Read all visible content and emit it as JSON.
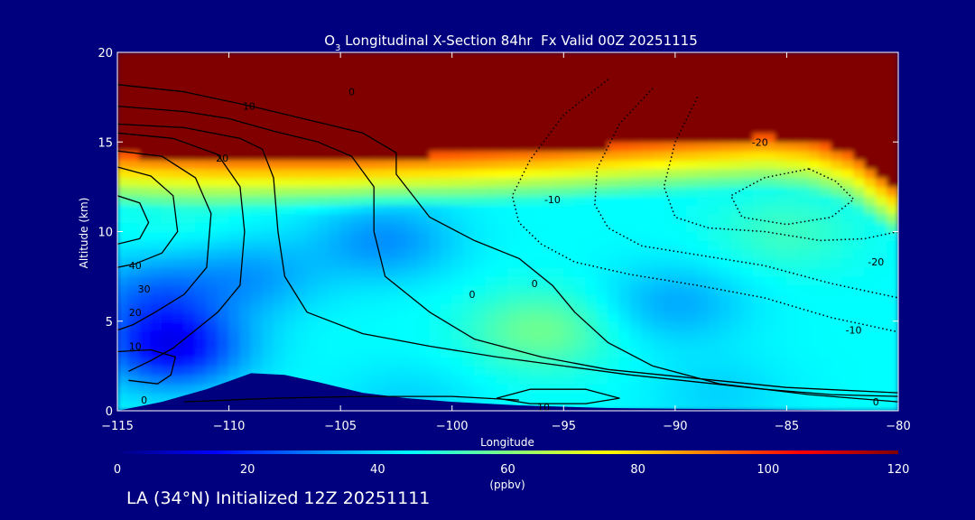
{
  "chart_data": {
    "type": "heatmap",
    "title": "O3 Longitudinal X-Section 84hr  Fx Valid 00Z 20251115",
    "title_parts": {
      "prefix": "O",
      "subscript": "3",
      "suffix": " Longitudinal X-Section 84hr  Fx Valid 00Z 20251115"
    },
    "xlabel": "Longitude",
    "ylabel": "Altitude (km)",
    "xlim": [
      -115,
      -80
    ],
    "ylim": [
      0,
      20
    ],
    "x_ticks": [
      -115,
      -110,
      -105,
      -100,
      -95,
      -90,
      -85,
      -80
    ],
    "x_tick_labels": [
      "-115",
      "-110",
      "-105",
      "-100",
      "-95",
      "-90",
      "-85",
      "-80"
    ],
    "y_ticks": [
      0,
      5,
      10,
      15,
      20
    ],
    "y_tick_labels": [
      "0",
      "5",
      "10",
      "15",
      "20"
    ],
    "colorbar": {
      "min": 0,
      "max": 120,
      "ticks": [
        0,
        20,
        40,
        60,
        80,
        100,
        120
      ],
      "tick_labels": [
        "0",
        "20",
        "40",
        "60",
        "80",
        "100",
        "120"
      ],
      "unit": "(ppbv)",
      "colors": [
        "#00007f",
        "#0000ff",
        "#0080ff",
        "#00ffff",
        "#80ff80",
        "#ffff00",
        "#ff8000",
        "#ff0000",
        "#800000"
      ]
    },
    "ozone_field": {
      "tropopause_km": [
        [
          -115,
          14.3
        ],
        [
          -113,
          14.2
        ],
        [
          -110,
          14.1
        ],
        [
          -105,
          14.1
        ],
        [
          -100,
          14.3
        ],
        [
          -95,
          14.6
        ],
        [
          -90,
          15.0
        ],
        [
          -86,
          15.3
        ],
        [
          -84,
          15.1
        ],
        [
          -82,
          14.3
        ],
        [
          -80,
          12.5
        ]
      ],
      "stratosphere_ppbv": 125,
      "background_ppbv": 45,
      "features": [
        {
          "lon": -112.5,
          "alt": 3.5,
          "ppbv": 15
        },
        {
          "lon": -113.5,
          "alt": 6.5,
          "ppbv": 30
        },
        {
          "lon": -109,
          "alt": 7.5,
          "ppbv": 34
        },
        {
          "lon": -103,
          "alt": 9.5,
          "ppbv": 32
        },
        {
          "lon": -96,
          "alt": 4.5,
          "ppbv": 58
        },
        {
          "lon": -90,
          "alt": 6,
          "ppbv": 35
        },
        {
          "lon": -85,
          "alt": 10,
          "ppbv": 52
        },
        {
          "lon": -112,
          "alt": 11,
          "ppbv": 48
        },
        {
          "lon": -88,
          "alt": 1,
          "ppbv": 40
        },
        {
          "lon": -102,
          "alt": 0.5,
          "ppbv": 40
        }
      ]
    },
    "terrain_km": [
      [
        -115,
        0.0
      ],
      [
        -113,
        0.5
      ],
      [
        -111,
        1.2
      ],
      [
        -109,
        2.1
      ],
      [
        -107.5,
        2.0
      ],
      [
        -106,
        1.6
      ],
      [
        -104,
        1.0
      ],
      [
        -102,
        0.7
      ],
      [
        -100,
        0.5
      ],
      [
        -97,
        0.3
      ],
      [
        -93,
        0.15
      ],
      [
        -80,
        0.0
      ]
    ],
    "contours": [
      {
        "style": "solid",
        "points": [
          [
            -115,
            18.2
          ],
          [
            -112,
            17.8
          ],
          [
            -109,
            17.0
          ],
          [
            -106,
            16.1
          ],
          [
            -104,
            15.5
          ],
          [
            -102.5,
            14.4
          ],
          [
            -102.5,
            13.2
          ],
          [
            -101,
            10.8
          ],
          [
            -99,
            9.5
          ],
          [
            -97,
            8.5
          ],
          [
            -95.5,
            7.0
          ],
          [
            -94.5,
            5.5
          ],
          [
            -93,
            3.8
          ],
          [
            -91,
            2.5
          ],
          [
            -88,
            1.5
          ],
          [
            -84,
            0.9
          ],
          [
            -80,
            0.5
          ]
        ]
      },
      {
        "style": "solid",
        "points": [
          [
            -115,
            17.0
          ],
          [
            -112,
            16.7
          ],
          [
            -110,
            16.3
          ],
          [
            -108,
            15.6
          ],
          [
            -106,
            15.0
          ],
          [
            -104.5,
            14.2
          ],
          [
            -103.5,
            12.5
          ],
          [
            -103.5,
            10.0
          ],
          [
            -103,
            7.5
          ],
          [
            -101,
            5.5
          ],
          [
            -99,
            4.0
          ],
          [
            -96,
            3.0
          ],
          [
            -93,
            2.3
          ],
          [
            -89,
            1.8
          ],
          [
            -85,
            1.3
          ],
          [
            -80,
            1.0
          ]
        ]
      },
      {
        "style": "solid",
        "points": [
          [
            -115,
            16.0
          ],
          [
            -112,
            15.8
          ],
          [
            -109.5,
            15.2
          ],
          [
            -108.5,
            14.6
          ],
          [
            -108,
            13.0
          ],
          [
            -107.8,
            10.0
          ],
          [
            -107.5,
            7.5
          ],
          [
            -106.5,
            5.5
          ],
          [
            -104,
            4.3
          ],
          [
            -101,
            3.6
          ],
          [
            -98,
            3.0
          ],
          [
            -95,
            2.5
          ],
          [
            -92,
            2.0
          ],
          [
            -89,
            1.6
          ],
          [
            -86,
            1.2
          ],
          [
            -83,
            0.9
          ],
          [
            -80,
            0.8
          ]
        ]
      },
      {
        "style": "solid",
        "points": [
          [
            -115,
            15.5
          ],
          [
            -112.5,
            15.2
          ],
          [
            -110.5,
            14.3
          ],
          [
            -109.5,
            12.5
          ],
          [
            -109.3,
            10.0
          ],
          [
            -109.5,
            7.0
          ],
          [
            -110.5,
            5.5
          ],
          [
            -111.5,
            4.5
          ],
          [
            -112.5,
            3.5
          ],
          [
            -113.5,
            2.8
          ],
          [
            -114.5,
            2.2
          ]
        ]
      },
      {
        "style": "solid",
        "points": [
          [
            -115,
            14.5
          ],
          [
            -113,
            14.2
          ],
          [
            -111.5,
            13.0
          ],
          [
            -110.8,
            11.0
          ],
          [
            -111,
            8.0
          ],
          [
            -112,
            6.5
          ],
          [
            -113.3,
            5.5
          ],
          [
            -114.3,
            4.8
          ],
          [
            -115,
            4.5
          ]
        ]
      },
      {
        "style": "solid",
        "points": [
          [
            -115,
            13.6
          ],
          [
            -113.5,
            13.1
          ],
          [
            -112.5,
            12.0
          ],
          [
            -112.3,
            10.0
          ],
          [
            -113,
            8.8
          ],
          [
            -114.2,
            8.2
          ],
          [
            -115,
            8.0
          ]
        ]
      },
      {
        "style": "solid",
        "points": [
          [
            -115,
            12.0
          ],
          [
            -114,
            11.6
          ],
          [
            -113.6,
            10.5
          ],
          [
            -114,
            9.6
          ],
          [
            -115,
            9.3
          ]
        ]
      },
      {
        "style": "solid",
        "points": [
          [
            -115,
            3.3
          ],
          [
            -113.5,
            3.4
          ],
          [
            -112.4,
            3.0
          ],
          [
            -112.6,
            2.0
          ],
          [
            -113.2,
            1.5
          ],
          [
            -114.5,
            1.7
          ]
        ]
      },
      {
        "style": "solid",
        "points": [
          [
            -98,
            0.7
          ],
          [
            -96.5,
            1.2
          ],
          [
            -94,
            1.2
          ],
          [
            -92.5,
            0.7
          ],
          [
            -94,
            0.4
          ],
          [
            -96.5,
            0.4
          ],
          [
            -98,
            0.7
          ]
        ]
      },
      {
        "style": "solid",
        "points": [
          [
            -112,
            0.5
          ],
          [
            -108,
            0.7
          ],
          [
            -104,
            0.8
          ],
          [
            -100,
            0.8
          ],
          [
            -97,
            0.6
          ]
        ]
      },
      {
        "style": "dotted",
        "points": [
          [
            -93,
            18.5
          ],
          [
            -95,
            16.5
          ],
          [
            -96.5,
            14.0
          ],
          [
            -97.3,
            12.0
          ],
          [
            -97,
            10.5
          ],
          [
            -96,
            9.3
          ],
          [
            -94.5,
            8.3
          ],
          [
            -92,
            7.6
          ],
          [
            -89,
            7.0
          ],
          [
            -86,
            6.3
          ],
          [
            -83,
            5.2
          ],
          [
            -80,
            4.4
          ]
        ]
      },
      {
        "style": "dotted",
        "points": [
          [
            -91,
            18.0
          ],
          [
            -92.5,
            16.0
          ],
          [
            -93.5,
            13.5
          ],
          [
            -93.6,
            11.5
          ],
          [
            -93,
            10.2
          ],
          [
            -91.5,
            9.2
          ],
          [
            -89,
            8.7
          ],
          [
            -86,
            8.1
          ],
          [
            -83,
            7.1
          ],
          [
            -80,
            6.3
          ]
        ]
      },
      {
        "style": "dotted",
        "points": [
          [
            -89,
            17.5
          ],
          [
            -90,
            15.0
          ],
          [
            -90.5,
            12.5
          ],
          [
            -90,
            10.8
          ],
          [
            -88.5,
            10.2
          ],
          [
            -86,
            10.0
          ],
          [
            -83.5,
            9.5
          ],
          [
            -81.5,
            9.6
          ],
          [
            -80,
            10.0
          ]
        ]
      },
      {
        "style": "dotted",
        "points": [
          [
            -84,
            13.5
          ],
          [
            -86,
            13.0
          ],
          [
            -87.5,
            12.0
          ],
          [
            -87,
            10.8
          ],
          [
            -85,
            10.4
          ],
          [
            -83,
            10.8
          ],
          [
            -82,
            11.8
          ],
          [
            -82.8,
            12.8
          ],
          [
            -84,
            13.5
          ]
        ]
      }
    ],
    "contour_labels": [
      {
        "text": "0",
        "lon": -104.5,
        "alt": 17.8
      },
      {
        "text": "10",
        "lon": -109.1,
        "alt": 17.0
      },
      {
        "text": "20",
        "lon": -110.3,
        "alt": 14.1
      },
      {
        "text": "40",
        "lon": -114.2,
        "alt": 8.1
      },
      {
        "text": "30",
        "lon": -113.8,
        "alt": 6.8
      },
      {
        "text": "20",
        "lon": -114.2,
        "alt": 5.5
      },
      {
        "text": "10",
        "lon": -114.2,
        "alt": 3.6
      },
      {
        "text": "0",
        "lon": -113.8,
        "alt": 0.6
      },
      {
        "text": "0",
        "lon": -99.1,
        "alt": 6.5
      },
      {
        "text": "0",
        "lon": -96.3,
        "alt": 7.1
      },
      {
        "text": "-10",
        "lon": -95.5,
        "alt": 11.8
      },
      {
        "text": "-20",
        "lon": -86.2,
        "alt": 15.0
      },
      {
        "text": "-20",
        "lon": -81.0,
        "alt": 8.3
      },
      {
        "text": "-10",
        "lon": -82.0,
        "alt": 4.5
      },
      {
        "text": "0",
        "lon": -81.0,
        "alt": 0.5
      },
      {
        "text": "10",
        "lon": -95.9,
        "alt": 0.2
      }
    ]
  },
  "footer": {
    "text": "LA (34°N) Initialized 12Z 20251111"
  }
}
